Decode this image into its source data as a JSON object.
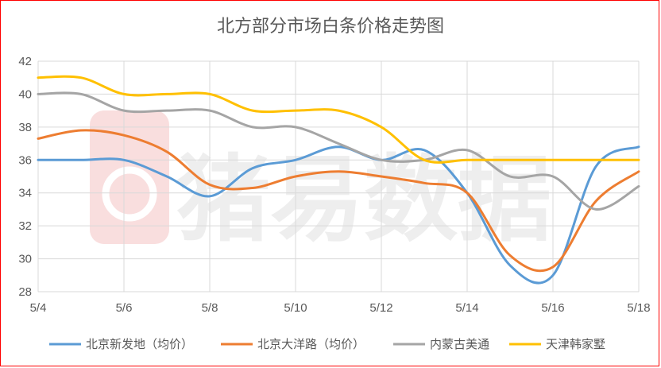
{
  "chart_data": {
    "type": "line",
    "title": "北方部分市场白条价格走势图",
    "xlabel": "",
    "ylabel": "",
    "x_ticks": [
      "5/4",
      "5/6",
      "5/8",
      "5/10",
      "5/12",
      "5/14",
      "5/16",
      "5/18"
    ],
    "x_range": [
      4,
      18
    ],
    "ylim": [
      28,
      42
    ],
    "y_ticks": [
      28,
      30,
      32,
      34,
      36,
      38,
      40,
      42
    ],
    "grid": "horizontal",
    "legend_position": "bottom",
    "watermark": "猪易数据",
    "x": [
      "5/4",
      "5/5",
      "5/6",
      "5/7",
      "5/8",
      "5/9",
      "5/10",
      "5/11",
      "5/12",
      "5/13",
      "5/14",
      "5/15",
      "5/16",
      "5/17",
      "5/18"
    ],
    "series": [
      {
        "name": "北京新发地（均价）",
        "color": "#5b9bd5",
        "values": [
          36,
          36,
          36,
          35,
          33.8,
          35.5,
          36,
          36.8,
          36,
          36.6,
          34,
          29.6,
          29,
          35.6,
          36.8
        ]
      },
      {
        "name": "北京大洋路（均价）",
        "color": "#ed7d31",
        "values": [
          37.3,
          37.8,
          37.5,
          36.5,
          34.5,
          34.3,
          35,
          35.3,
          35,
          34.6,
          34,
          30.2,
          29.5,
          33.5,
          35.3
        ]
      },
      {
        "name": "内蒙古美通",
        "color": "#a5a5a5",
        "values": [
          40,
          40,
          39,
          39,
          39,
          38,
          38,
          37,
          36,
          36,
          36.6,
          35,
          35,
          33,
          34.4
        ]
      },
      {
        "name": "天津韩家墅",
        "color": "#ffc000",
        "values": [
          41,
          41,
          40,
          40,
          40,
          39,
          39,
          39,
          38,
          36,
          36,
          36,
          36,
          36,
          36
        ]
      }
    ]
  }
}
